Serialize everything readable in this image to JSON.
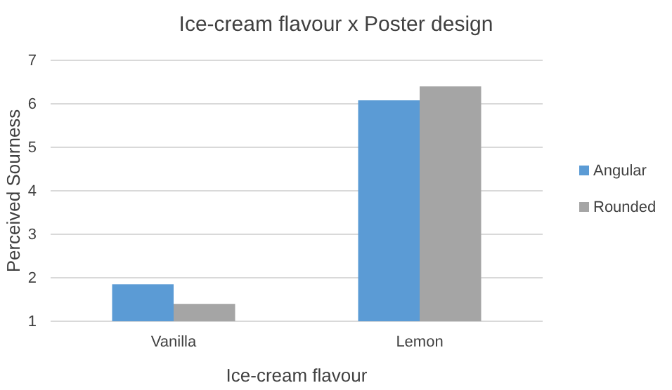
{
  "chart_data": {
    "type": "bar",
    "title": "Ice-cream flavour x Poster design",
    "xlabel": "Ice-cream flavour",
    "ylabel": "Perceived Sourness",
    "categories": [
      "Vanilla",
      "Lemon"
    ],
    "series": [
      {
        "name": "Angular",
        "color": "#5b9bd5",
        "values": [
          1.85,
          6.08
        ]
      },
      {
        "name": "Rounded",
        "color": "#a5a5a5",
        "values": [
          1.4,
          6.4
        ]
      }
    ],
    "ylim": [
      1,
      7
    ],
    "yticks": [
      1,
      2,
      3,
      4,
      5,
      6,
      7
    ],
    "grid": "y",
    "legend": "right"
  }
}
